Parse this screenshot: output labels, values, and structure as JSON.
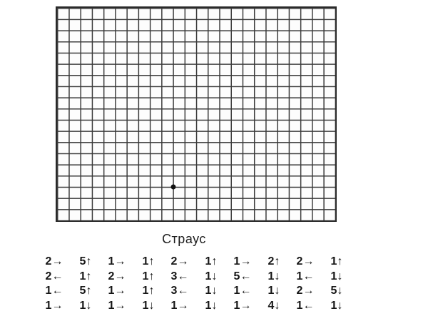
{
  "title": "Страус",
  "grid": {
    "cols": 24,
    "rows": 19,
    "line_color": "#3a3a3a",
    "border_color": "#2a2a2a",
    "start_dot": {
      "col": 10,
      "row": 16,
      "color": "#111111"
    }
  },
  "instructions": {
    "rows": [
      [
        "2→",
        "5↑",
        "1→",
        "1↑",
        "2→",
        "1↑",
        "1→",
        "2↑",
        "2→",
        "1↑"
      ],
      [
        "2←",
        "1↑",
        "2→",
        "1↑",
        "3←",
        "1↓",
        "5←",
        "1↓",
        "1←",
        "1↓"
      ],
      [
        "1←",
        "5↑",
        "1→",
        "1↑",
        "3←",
        "1↓",
        "1←",
        "1↓",
        "2→",
        "5↓"
      ],
      [
        "1→",
        "1↓",
        "1→",
        "1↓",
        "1→",
        "1↓",
        "1→",
        "4↓",
        "1←",
        "1↓"
      ]
    ]
  }
}
